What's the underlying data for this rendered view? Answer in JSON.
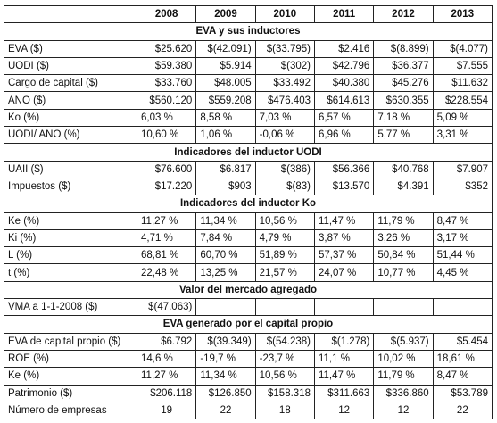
{
  "table": {
    "header": [
      "2008",
      "2009",
      "2010",
      "2011",
      "2012",
      "2013"
    ],
    "rows": [
      {
        "section": "EVA y sus inductores"
      },
      {
        "label": "EVA ($)",
        "cells": [
          "$25.620",
          "$(42.091)",
          "$(33.795)",
          "$2.416",
          "$(8.899)",
          "$(4.077)"
        ]
      },
      {
        "label": "UODI ($)",
        "cells": [
          "$59.380",
          "$5.914",
          "$(302)",
          "$42.796",
          "$36.377",
          "$7.555"
        ]
      },
      {
        "label": "Cargo de capital ($)",
        "cells": [
          "$33.760",
          "$48.005",
          "$33.492",
          "$40.380",
          "$45.276",
          "$11.632"
        ]
      },
      {
        "label": "ANO ($)",
        "cells": [
          "$560.120",
          "$559.208",
          "$476.403",
          "$614.613",
          "$630.355",
          "$228.554"
        ]
      },
      {
        "label": "Ko (%)",
        "cells": [
          "6,03 %",
          "8,58 %",
          "7,03 %",
          "6,57 %",
          "7,18 %",
          "5,09 %"
        ]
      },
      {
        "label": "UODI/ ANO (%)",
        "cells": [
          "10,60 %",
          "1,06 %",
          "-0,06 %",
          "6,96 %",
          "5,77 %",
          "3,31 %"
        ]
      },
      {
        "section": "Indicadores del inductor UODI"
      },
      {
        "label": "UAII ($)",
        "cells": [
          "$76.600",
          "$6.817",
          "$(386)",
          "$56.366",
          "$40.768",
          "$7.907"
        ]
      },
      {
        "label": "Impuestos ($)",
        "cells": [
          "$17.220",
          "$903",
          "$(83)",
          "$13.570",
          "$4.391",
          "$352"
        ]
      },
      {
        "section": "Indicadores del inductor Ko"
      },
      {
        "label": "Ke (%)",
        "cells": [
          "11,27 %",
          "11,34 %",
          "10,56 %",
          "11,47 %",
          "11,79 %",
          "8,47 %"
        ]
      },
      {
        "label": "Ki (%)",
        "cells": [
          "4,71 %",
          "7,84 %",
          "4,79 %",
          "3,87 %",
          "3,26 %",
          "3,17 %"
        ]
      },
      {
        "label": "L (%)",
        "cells": [
          "68,81 %",
          "60,70 %",
          "51,89 %",
          "57,37 %",
          "50,84 %",
          "51,44 %"
        ]
      },
      {
        "label": "t (%)",
        "cells": [
          "22,48 %",
          "13,25 %",
          "21,57 %",
          "24,07 %",
          "10,77 %",
          "4,45 %"
        ]
      },
      {
        "section": "Valor del mercado agregado"
      },
      {
        "label": "VMA a 1-1-2008 ($)",
        "cells": [
          "$(47.063)"
        ]
      },
      {
        "section": "EVA generado por el capital propio"
      },
      {
        "label": "EVA de capital propio ($)",
        "cells": [
          "$6.792",
          "$(39.349)",
          "$(54.238)",
          "$(1.278)",
          "$(5.937)",
          "$5.454"
        ]
      },
      {
        "label": "ROE (%)",
        "cells": [
          "14,6 %",
          "-19,7 %",
          "-23,7 %",
          "11,1 %",
          "10,02 %",
          "18,61 %"
        ]
      },
      {
        "label": "Ke (%)",
        "cells": [
          "11,27 %",
          "11,34 %",
          "10,56 %",
          "11,47 %",
          "11,79 %",
          "8,47 %"
        ]
      },
      {
        "label": "Patrimonio ($)",
        "cells": [
          "$206.118",
          "$126.850",
          "$158.318",
          "$311.663",
          "$336.860",
          "$53.789"
        ]
      },
      {
        "label": "Número de empresas",
        "cells": [
          "19",
          "22",
          "18",
          "12",
          "12",
          "22"
        ]
      }
    ]
  }
}
